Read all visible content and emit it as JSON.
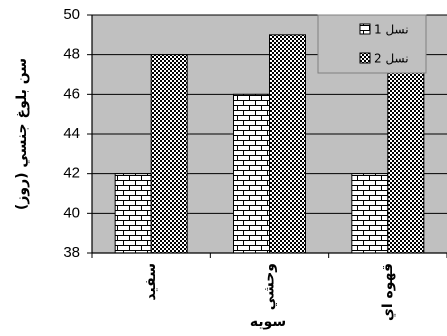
{
  "chart_data": {
    "type": "bar",
    "categories": [
      "سفيد",
      "وحشي",
      "قهوه اي"
    ],
    "series": [
      {
        "name": "نسل 1",
        "values": [
          42,
          46,
          42
        ]
      },
      {
        "name": "نسل 2",
        "values": [
          48,
          49,
          48
        ]
      }
    ],
    "ylabel": "سن بلوغ جنسي (روز)",
    "xlabel": "سويه",
    "ylim": [
      38,
      50
    ],
    "yticks": [
      38,
      40,
      42,
      44,
      46,
      48,
      50
    ],
    "grid": true,
    "legend_position": "top-right",
    "colors": {
      "plot_bg": "#c0c0c0",
      "bar_fill": "#ffffff",
      "bar_pattern": "#000000"
    }
  }
}
